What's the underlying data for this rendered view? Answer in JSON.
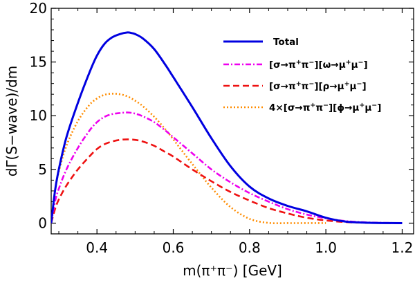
{
  "chart_data": {
    "type": "line",
    "xlabel": "m(π⁺π⁻) [GeV]",
    "ylabel": "dΓ(S−wave)/dm",
    "xlim": [
      0.28,
      1.23
    ],
    "ylim": [
      -1.0,
      20.0
    ],
    "x_ticks": [
      0.4,
      0.6,
      0.8,
      1.0,
      1.2
    ],
    "x_tick_labels": [
      "0.4",
      "0.6",
      "0.8",
      "1.0",
      "1.2"
    ],
    "y_ticks": [
      0,
      5,
      10,
      15,
      20
    ],
    "y_tick_labels": [
      "0",
      "5",
      "10",
      "15",
      "20"
    ],
    "legend_position": "top-right",
    "series": [
      {
        "name": "Total",
        "label_parts": [
          {
            "t": "Total"
          }
        ],
        "color": "#0000e0",
        "dash": "solid",
        "x": [
          0.28,
          0.29,
          0.3,
          0.32,
          0.35,
          0.38,
          0.4,
          0.42,
          0.44,
          0.46,
          0.48,
          0.49,
          0.5,
          0.52,
          0.55,
          0.58,
          0.6,
          0.65,
          0.7,
          0.75,
          0.8,
          0.85,
          0.9,
          0.95,
          1.0,
          1.05,
          1.1,
          1.15,
          1.2
        ],
        "values": [
          0.0,
          3.0,
          5.0,
          8.0,
          11.2,
          14.0,
          15.6,
          16.7,
          17.3,
          17.6,
          17.75,
          17.7,
          17.6,
          17.2,
          16.2,
          14.7,
          13.6,
          10.8,
          7.9,
          5.3,
          3.4,
          2.3,
          1.6,
          1.1,
          0.5,
          0.15,
          0.05,
          0.01,
          0.0
        ]
      },
      {
        "name": "[σ→π⁺π⁻][ω→μ⁺μ⁻]",
        "label_parts": [
          {
            "t": "[σ→π"
          },
          {
            "t": "+",
            "s": "sup"
          },
          {
            "t": "π"
          },
          {
            "t": "−",
            "s": "sup"
          },
          {
            "t": "][ω→μ"
          },
          {
            "t": "+",
            "s": "sup"
          },
          {
            "t": "μ"
          },
          {
            "t": "−",
            "s": "sup"
          },
          {
            "t": "]"
          }
        ],
        "color": "#ee00ee",
        "dash": "8,3,2,3",
        "x": [
          0.28,
          0.29,
          0.3,
          0.32,
          0.35,
          0.38,
          0.4,
          0.42,
          0.44,
          0.46,
          0.48,
          0.5,
          0.52,
          0.55,
          0.58,
          0.6,
          0.65,
          0.7,
          0.75,
          0.8,
          0.85,
          0.9,
          0.95,
          1.0,
          1.05,
          1.1,
          1.15,
          1.2
        ],
        "values": [
          0.0,
          2.0,
          3.2,
          5.0,
          7.0,
          8.6,
          9.4,
          9.9,
          10.15,
          10.25,
          10.3,
          10.2,
          9.95,
          9.4,
          8.6,
          8.0,
          6.5,
          5.0,
          3.8,
          2.8,
          2.0,
          1.3,
          0.8,
          0.45,
          0.2,
          0.08,
          0.03,
          0.0
        ]
      },
      {
        "name": "[σ→π⁺π⁻][ρ→μ⁺μ⁻]",
        "label_parts": [
          {
            "t": "[σ→π"
          },
          {
            "t": "+",
            "s": "sup"
          },
          {
            "t": "π"
          },
          {
            "t": "−",
            "s": "sup"
          },
          {
            "t": "][ρ→μ"
          },
          {
            "t": "+",
            "s": "sup"
          },
          {
            "t": "μ"
          },
          {
            "t": "−",
            "s": "sup"
          },
          {
            "t": "]"
          }
        ],
        "color": "#ee1111",
        "dash": "9,5",
        "x": [
          0.28,
          0.29,
          0.3,
          0.32,
          0.35,
          0.38,
          0.4,
          0.42,
          0.44,
          0.46,
          0.48,
          0.5,
          0.52,
          0.55,
          0.58,
          0.6,
          0.65,
          0.7,
          0.75,
          0.8,
          0.85,
          0.9,
          0.95,
          1.0,
          1.05,
          1.1,
          1.15,
          1.2
        ],
        "values": [
          0.0,
          1.3,
          2.2,
          3.5,
          5.0,
          6.2,
          6.9,
          7.35,
          7.6,
          7.75,
          7.8,
          7.75,
          7.6,
          7.2,
          6.6,
          6.2,
          5.0,
          3.9,
          2.9,
          2.1,
          1.4,
          0.9,
          0.5,
          0.25,
          0.1,
          0.04,
          0.01,
          0.0
        ]
      },
      {
        "name": "4×[σ→π⁺π⁻][ϕ→μ⁺μ⁻]",
        "label_parts": [
          {
            "t": "4×[σ→π"
          },
          {
            "t": "+",
            "s": "sup"
          },
          {
            "t": "π"
          },
          {
            "t": "−",
            "s": "sup"
          },
          {
            "t": "][ϕ→μ"
          },
          {
            "t": "+",
            "s": "sup"
          },
          {
            "t": "μ"
          },
          {
            "t": "−",
            "s": "sup"
          },
          {
            "t": "]"
          }
        ],
        "color": "#ff8c00",
        "dash": "2,3",
        "x": [
          0.28,
          0.29,
          0.3,
          0.32,
          0.35,
          0.38,
          0.4,
          0.42,
          0.44,
          0.46,
          0.48,
          0.5,
          0.52,
          0.55,
          0.58,
          0.6,
          0.65,
          0.7,
          0.75,
          0.8,
          0.85,
          0.9,
          0.95,
          1.0
        ],
        "values": [
          0.0,
          3.0,
          4.8,
          7.2,
          9.5,
          11.0,
          11.6,
          11.95,
          12.05,
          12.0,
          11.8,
          11.4,
          10.9,
          9.9,
          8.7,
          7.8,
          5.5,
          3.3,
          1.5,
          0.4,
          0.02,
          0.0,
          0.0,
          0.0
        ]
      }
    ]
  }
}
